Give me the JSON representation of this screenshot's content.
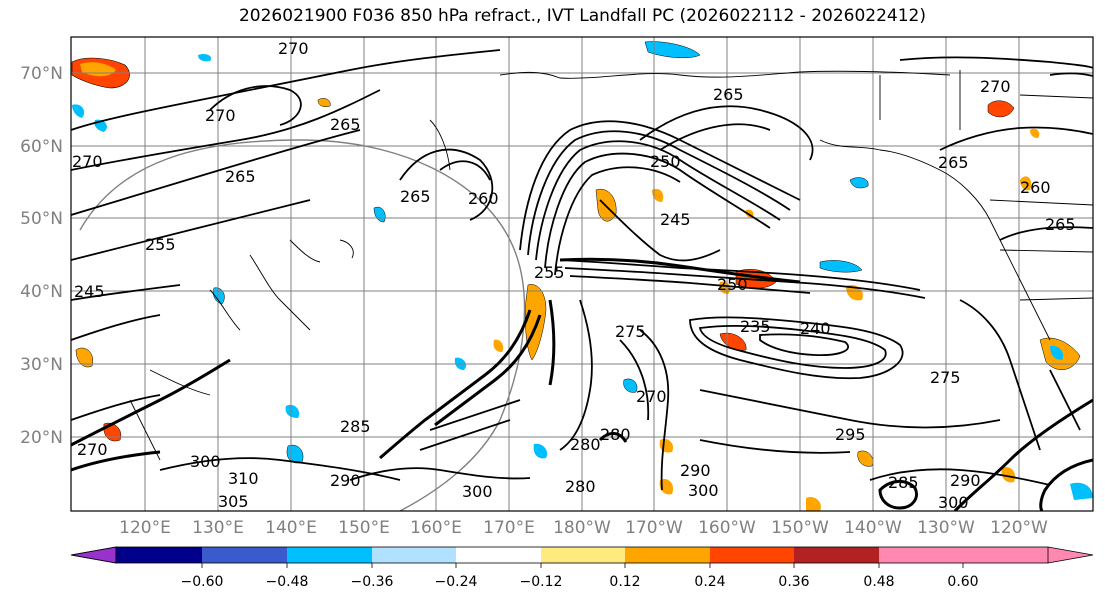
{
  "title": "2026021900 F036 850 hPa refract., IVT Landfall PC (2026022112 - 2026022412)",
  "lat_labels": [
    "70°N",
    "60°N",
    "50°N",
    "40°N",
    "30°N",
    "20°N"
  ],
  "lon_labels": [
    "120°E",
    "130°E",
    "140°E",
    "150°E",
    "160°E",
    "170°E",
    "180°W",
    "170°W",
    "160°W",
    "150°W",
    "140°W",
    "130°W",
    "120°W"
  ],
  "contour_labels": [
    "270",
    "270",
    "270",
    "270",
    "265",
    "265",
    "265",
    "265",
    "265",
    "260",
    "260",
    "255",
    "255",
    "250",
    "250",
    "245",
    "245",
    "240",
    "235",
    "275",
    "270",
    "280",
    "280",
    "290",
    "285",
    "290",
    "295",
    "300",
    "300",
    "300",
    "300",
    "305",
    "310",
    "285",
    "275",
    "290",
    "280",
    "265",
    "270"
  ],
  "colorbar": {
    "colors": [
      "#9932cc",
      "#00008b",
      "#3a5bcc",
      "#00bfff",
      "#b0e2ff",
      "#ffffff",
      "#ffea80",
      "#ffa500",
      "#ff4500",
      "#b22222",
      "#ff88b0"
    ],
    "tick_labels": [
      "−0.60",
      "−0.48",
      "−0.36",
      "−0.24",
      "−0.12",
      "0.12",
      "0.24",
      "0.36",
      "0.48",
      "0.60"
    ]
  },
  "colors": {
    "grid": "#808080",
    "coast": "#000000",
    "contour": "#000000"
  }
}
